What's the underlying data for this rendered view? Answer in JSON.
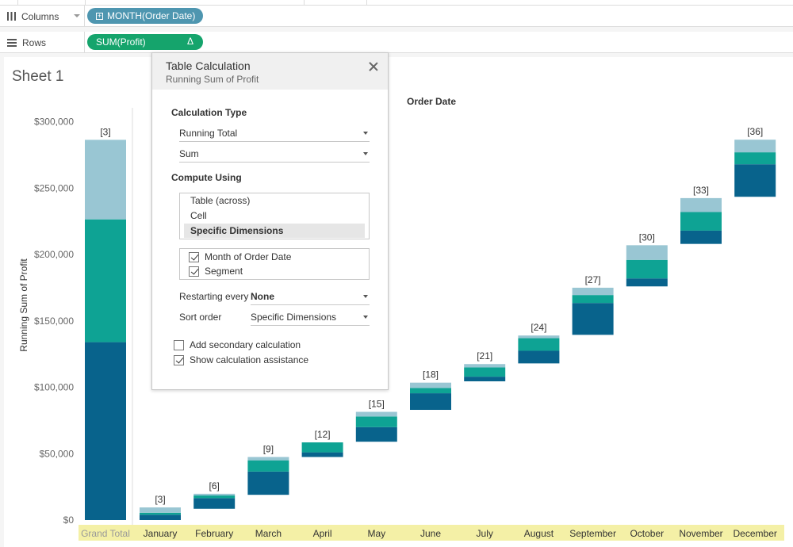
{
  "shelves": {
    "columns": {
      "label": "Columns",
      "pill": "MONTH(Order Date)"
    },
    "rows": {
      "label": "Rows",
      "pill": "SUM(Profit)",
      "pill_badge": "Δ"
    }
  },
  "sheet": {
    "title": "Sheet 1"
  },
  "colors": {
    "dark": "#08638c",
    "teal": "#0ea394",
    "light": "#99c6d3",
    "axis_highlight": "#f4f0a6",
    "pill_blue": "#4e96b0",
    "pill_green": "#15a46c"
  },
  "dialog": {
    "title": "Table Calculation",
    "subtitle": "Running Sum of Profit",
    "calc_type_heading": "Calculation Type",
    "calc_type_value": "Running Total",
    "aggregation_value": "Sum",
    "compute_using_heading": "Compute Using",
    "compute_options": [
      {
        "label": "Table (across)",
        "selected": false
      },
      {
        "label": "Cell",
        "selected": false
      },
      {
        "label": "Specific Dimensions",
        "selected": true
      }
    ],
    "dimensions": [
      {
        "label": "Month of Order Date",
        "checked": true
      },
      {
        "label": "Segment",
        "checked": true
      }
    ],
    "restarting_label": "Restarting every",
    "restarting_value": "None",
    "sort_label": "Sort order",
    "sort_value": "Specific Dimensions",
    "secondary_calc": {
      "label": "Add secondary calculation",
      "checked": false
    },
    "assistance": {
      "label": "Show calculation assistance",
      "checked": true
    }
  },
  "chart_data": {
    "type": "bar",
    "chart_subtype": "stacked gantt (running total)",
    "title": "",
    "header": "Order Date",
    "ylabel": "Running Sum of Profit",
    "ylim": [
      0,
      300000
    ],
    "yticks": [
      "$0",
      "$50,000",
      "$100,000",
      "$150,000",
      "$200,000",
      "$250,000",
      "$300,000"
    ],
    "grand_total": {
      "label": "Grand Total",
      "segments": [
        {
          "from": 0,
          "to": 134000,
          "color": "dark"
        },
        {
          "from": 134000,
          "to": 226500,
          "color": "teal"
        },
        {
          "from": 226500,
          "to": 286400,
          "color": "light"
        }
      ],
      "annotation": "[3]"
    },
    "categories": [
      "January",
      "February",
      "March",
      "April",
      "May",
      "June",
      "July",
      "August",
      "September",
      "October",
      "November",
      "December"
    ],
    "months": [
      {
        "annotation": "[3]",
        "segments": [
          {
            "from": 0,
            "to": 4000,
            "color": "dark"
          },
          {
            "from": 4000,
            "to": 5500,
            "color": "teal"
          },
          {
            "from": 5500,
            "to": 9500,
            "color": "light"
          }
        ]
      },
      {
        "annotation": "[6]",
        "segments": [
          {
            "from": 8500,
            "to": 16500,
            "color": "dark"
          },
          {
            "from": 16500,
            "to": 18500,
            "color": "teal"
          },
          {
            "from": 18500,
            "to": 19800,
            "color": "light"
          }
        ]
      },
      {
        "annotation": "[9]",
        "segments": [
          {
            "from": 19000,
            "to": 36500,
            "color": "dark"
          },
          {
            "from": 36500,
            "to": 45000,
            "color": "teal"
          },
          {
            "from": 45000,
            "to": 47500,
            "color": "light"
          }
        ]
      },
      {
        "annotation": "[12]",
        "segments": [
          {
            "from": 47500,
            "to": 51000,
            "color": "dark"
          },
          {
            "from": 51000,
            "to": 58500,
            "color": "teal"
          },
          {
            "from": 58500,
            "to": 58500,
            "color": "light"
          }
        ]
      },
      {
        "annotation": "[15]",
        "segments": [
          {
            "from": 59000,
            "to": 70000,
            "color": "dark"
          },
          {
            "from": 70000,
            "to": 78000,
            "color": "teal"
          },
          {
            "from": 78000,
            "to": 81500,
            "color": "light"
          }
        ]
      },
      {
        "annotation": "[18]",
        "segments": [
          {
            "from": 83000,
            "to": 95500,
            "color": "dark"
          },
          {
            "from": 95500,
            "to": 99500,
            "color": "teal"
          },
          {
            "from": 99500,
            "to": 103500,
            "color": "light"
          }
        ]
      },
      {
        "annotation": "[21]",
        "segments": [
          {
            "from": 104500,
            "to": 108000,
            "color": "dark"
          },
          {
            "from": 108000,
            "to": 115000,
            "color": "teal"
          },
          {
            "from": 115000,
            "to": 117500,
            "color": "light"
          }
        ]
      },
      {
        "annotation": "[24]",
        "segments": [
          {
            "from": 118000,
            "to": 127500,
            "color": "dark"
          },
          {
            "from": 127500,
            "to": 137000,
            "color": "teal"
          },
          {
            "from": 137000,
            "to": 139000,
            "color": "light"
          }
        ]
      },
      {
        "annotation": "[27]",
        "segments": [
          {
            "from": 139500,
            "to": 163500,
            "color": "dark"
          },
          {
            "from": 163500,
            "to": 169500,
            "color": "teal"
          },
          {
            "from": 169500,
            "to": 175000,
            "color": "light"
          }
        ]
      },
      {
        "annotation": "[30]",
        "segments": [
          {
            "from": 176000,
            "to": 182000,
            "color": "dark"
          },
          {
            "from": 182000,
            "to": 196000,
            "color": "teal"
          },
          {
            "from": 196000,
            "to": 207000,
            "color": "light"
          }
        ]
      },
      {
        "annotation": "[33]",
        "segments": [
          {
            "from": 208000,
            "to": 218000,
            "color": "dark"
          },
          {
            "from": 218000,
            "to": 232000,
            "color": "teal"
          },
          {
            "from": 232000,
            "to": 242500,
            "color": "light"
          }
        ]
      },
      {
        "annotation": "[36]",
        "segments": [
          {
            "from": 243500,
            "to": 268000,
            "color": "dark"
          },
          {
            "from": 268000,
            "to": 277000,
            "color": "teal"
          },
          {
            "from": 277000,
            "to": 286500,
            "color": "light"
          }
        ]
      }
    ]
  }
}
